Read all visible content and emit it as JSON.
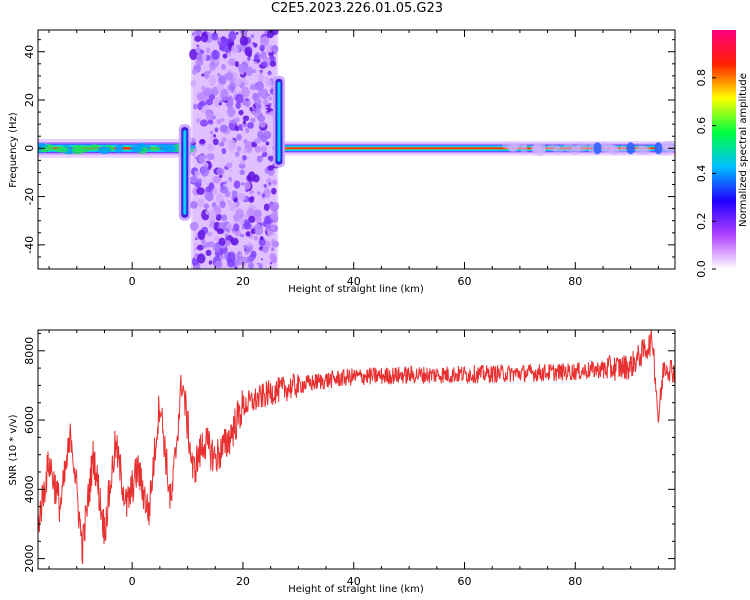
{
  "title": "C2E5.2023.226.01.05.G23",
  "chart_data": [
    {
      "type": "heatmap",
      "xlabel": "Height of straight line (km)",
      "ylabel": "Frequency (Hz)",
      "xlim": [
        -17,
        98
      ],
      "ylim": [
        -50,
        49
      ],
      "x_ticks": [
        0,
        20,
        40,
        60,
        80
      ],
      "y_ticks": [
        -40,
        -20,
        0,
        20,
        40
      ],
      "colorbar": {
        "label": "Normalized spectral amplitude",
        "ticks": [
          0.0,
          0.2,
          0.4,
          0.6,
          0.8
        ],
        "colors": [
          "#ffffff",
          "#b040ff",
          "#2000ff",
          "#00c0ff",
          "#00ff40",
          "#ffff00",
          "#ff2000",
          "#ff0080"
        ]
      },
      "features": {
        "carrier_line_freq_hz": 0,
        "noise_band_km": [
          11,
          26
        ],
        "spikes": [
          {
            "x_km": 9.5,
            "freq_range_hz": [
              -30,
              10
            ]
          },
          {
            "x_km": 26.5,
            "freq_range_hz": [
              -8,
              30
            ]
          }
        ]
      }
    },
    {
      "type": "line",
      "xlabel": "Height of straight line (km)",
      "ylabel": "SNR (10 * v/v)",
      "xlim": [
        -17,
        98
      ],
      "ylim": [
        1700,
        8600
      ],
      "x_ticks": [
        0,
        20,
        40,
        60,
        80
      ],
      "y_ticks": [
        2000,
        4000,
        6000,
        8000
      ],
      "color": "#e83030",
      "series": [
        {
          "x": [
            -17,
            -15,
            -13,
            -11,
            -9,
            -7,
            -5,
            -3,
            -1,
            1,
            3,
            5,
            7,
            9,
            11,
            13,
            15,
            17,
            20,
            25,
            30,
            35,
            40,
            50,
            60,
            70,
            80,
            90,
            94,
            95,
            96,
            98
          ],
          "y": [
            3000,
            4800,
            3500,
            5600,
            2300,
            5000,
            2800,
            5300,
            3500,
            4600,
            3300,
            6600,
            3500,
            7200,
            4500,
            5400,
            4900,
            5300,
            6400,
            6800,
            7000,
            7150,
            7250,
            7300,
            7320,
            7350,
            7400,
            7550,
            8300,
            6000,
            7600,
            7400
          ]
        }
      ]
    }
  ]
}
